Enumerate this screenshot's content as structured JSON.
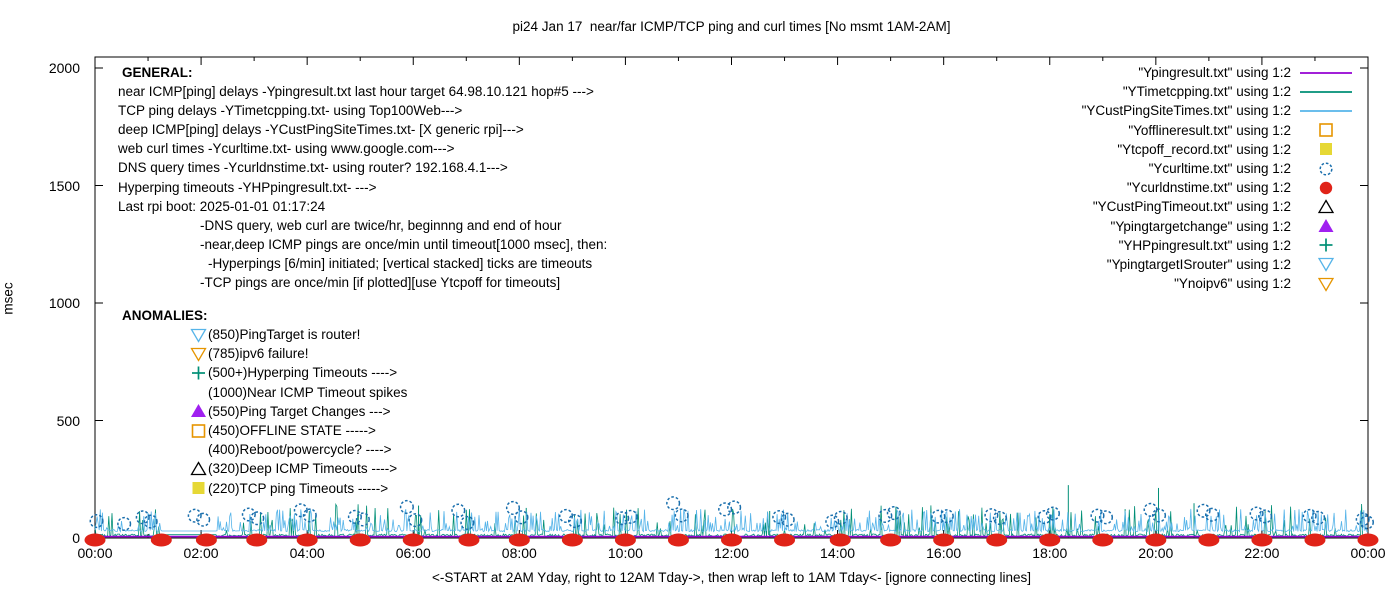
{
  "title": "pi24 Jan 17  near/far ICMP/TCP ping and curl times [No msmt 1AM-2AM]",
  "axes": {
    "ylabel": "msec",
    "xlabel": "<-START at 2AM Yday, right to 12AM Tday->, then wrap left to 1AM Tday<- [ignore connecting lines]",
    "y_ticks": [
      {
        "v": 0,
        "label": "0"
      },
      {
        "v": 500,
        "label": "500"
      },
      {
        "v": 1000,
        "label": "1000"
      },
      {
        "v": 1500,
        "label": "1500"
      },
      {
        "v": 2000,
        "label": "2000"
      }
    ],
    "x_ticks": [
      {
        "h": 0,
        "label": "00:00"
      },
      {
        "h": 2,
        "label": "02:00"
      },
      {
        "h": 4,
        "label": "04:00"
      },
      {
        "h": 6,
        "label": "06:00"
      },
      {
        "h": 8,
        "label": "08:00"
      },
      {
        "h": 10,
        "label": "10:00"
      },
      {
        "h": 12,
        "label": "12:00"
      },
      {
        "h": 14,
        "label": "14:00"
      },
      {
        "h": 16,
        "label": "16:00"
      },
      {
        "h": 18,
        "label": "18:00"
      },
      {
        "h": 20,
        "label": "20:00"
      },
      {
        "h": 22,
        "label": "22:00"
      },
      {
        "h": 24,
        "label": "00:00"
      }
    ]
  },
  "general": {
    "heading": "GENERAL:",
    "lines": [
      {
        "text": "near ICMP[ping] delays -Ypingresult.txt last hour target 64.98.10.121 hop#5 --->",
        "indent": 0
      },
      {
        "text": "TCP ping delays -YTimetcpping.txt- using Top100Web--->",
        "indent": 0
      },
      {
        "text": "deep ICMP[ping] delays -YCustPingSiteTimes.txt- [X generic rpi]--->",
        "indent": 0
      },
      {
        "text": "web curl times -Ycurltime.txt- using www.google.com--->",
        "indent": 0
      },
      {
        "text": "DNS query times -Ycurldnstime.txt- using router? 192.168.4.1--->",
        "indent": 0
      },
      {
        "text": "Hyperping timeouts -YHPpingresult.txt- --->",
        "indent": 0
      },
      {
        "text": "Last rpi boot: 2025-01-01 01:17:24",
        "indent": 0
      },
      {
        "text": "-DNS query, web curl are twice/hr, beginnng and end of hour",
        "indent": 1
      },
      {
        "text": "-near,deep ICMP pings are once/min until timeout[1000 msec], then:",
        "indent": 1
      },
      {
        "text": "-Hyperpings [6/min] initiated; [vertical stacked] ticks are timeouts",
        "indent": 2
      },
      {
        "text": "-TCP pings are once/min [if plotted][use Ytcpoff for timeouts]",
        "indent": 1
      }
    ]
  },
  "anomalies": {
    "heading": "ANOMALIES:",
    "items": [
      {
        "marker": "triangle-down-open",
        "color": "#56b4e9",
        "text": "(850)PingTarget is router!"
      },
      {
        "marker": "triangle-down-open",
        "color": "#e69500",
        "text": "(785)ipv6 failure!"
      },
      {
        "marker": "plus",
        "color": "#008f76",
        "text": "(500+)Hyperping Timeouts ---->"
      },
      {
        "marker": "none",
        "color": "",
        "text": "(1000)Near ICMP Timeout spikes"
      },
      {
        "marker": "triangle-up-filled",
        "color": "#a020f0",
        "text": "(550)Ping Target Changes --->"
      },
      {
        "marker": "square-open",
        "color": "#e69500",
        "text": "(450)OFFLINE STATE ----->"
      },
      {
        "marker": "none",
        "color": "",
        "text": "(400)Reboot/powercycle? ---->"
      },
      {
        "marker": "triangle-up-open",
        "color": "#000000",
        "text": "(320)Deep ICMP Timeouts ---->"
      },
      {
        "marker": "square-filled",
        "color": "#e6d835",
        "text": "(220)TCP ping Timeouts ----->"
      }
    ]
  },
  "legend": {
    "entries": [
      {
        "label": "\"Ypingresult.txt\" using 1:2",
        "marker": "line",
        "color": "#9400d3"
      },
      {
        "label": "\"YTimetcpping.txt\" using 1:2",
        "marker": "line",
        "color": "#008f76"
      },
      {
        "label": "\"YCustPingSiteTimes.txt\" using 1:2",
        "marker": "line",
        "color": "#56b4e9"
      },
      {
        "label": "\"Yofflineresult.txt\" using 1:2",
        "marker": "square-open",
        "color": "#e69500"
      },
      {
        "label": "\"Ytcpoff_record.txt\" using 1:2",
        "marker": "square-filled",
        "color": "#e6d835"
      },
      {
        "label": "\"Ycurltime.txt\" using 1:2",
        "marker": "circle-open",
        "color": "#1a6fad"
      },
      {
        "label": "\"Ycurldnstime.txt\" using 1:2",
        "marker": "circle-filled",
        "color": "#e02318"
      },
      {
        "label": "\"YCustPingTimeout.txt\" using 1:2",
        "marker": "triangle-up-open",
        "color": "#000000"
      },
      {
        "label": "\"Ypingtargetchange\" using 1:2",
        "marker": "triangle-up-filled",
        "color": "#a020f0"
      },
      {
        "label": "\"YHPpingresult.txt\" using 1:2",
        "marker": "plus",
        "color": "#008f76"
      },
      {
        "label": "\"YpingtargetISrouter\" using 1:2",
        "marker": "triangle-down-open",
        "color": "#56b4e9"
      },
      {
        "label": "\"Ynoipv6\" using 1:2",
        "marker": "triangle-down-open",
        "color": "#e69500"
      }
    ]
  },
  "chart_data": {
    "type": "line",
    "note": "24h time axis, all activity hugs 0-230 msec; 1AM-2AM gap bridged by flat connecting lines",
    "x_range_hours": [
      0,
      24
    ],
    "ylim": [
      0,
      2000
    ],
    "grid": false,
    "series": [
      {
        "name": "Ypingresult.txt",
        "kind": "flat-line",
        "color": "#9400d3",
        "value": 6
      },
      {
        "name": "YTimetcpping.txt",
        "kind": "noise-line",
        "color": "#008f76",
        "step": 0.02,
        "base": 6,
        "base_jitter": 11,
        "spike_prob": 0.1,
        "spike_min": 30,
        "spike_max": 145,
        "gap": [
          1.25,
          2.3
        ],
        "gap_value": 14,
        "seed": 777,
        "extra_spikes": [
          [
            6.1,
            138
          ],
          [
            8.13,
            128
          ],
          [
            12.72,
            115
          ],
          [
            18.35,
            225
          ],
          [
            20.05,
            213
          ],
          [
            20.72,
            148
          ]
        ]
      },
      {
        "name": "YCustPingSiteTimes.txt",
        "kind": "noise-line",
        "color": "#56b4e9",
        "step": 0.02,
        "base": 27,
        "base_jitter": 9,
        "spike_prob": 0.28,
        "spike_min": 40,
        "spike_max": 125,
        "gap": [
          1.25,
          2.3
        ],
        "gap_value": 30,
        "seed": 20240117,
        "extra_spikes": []
      },
      {
        "name": "Ycurltime.txt",
        "kind": "scatter",
        "marker": "circle-open",
        "color": "#1a6fad",
        "points": [
          [
            0.03,
            72
          ],
          [
            0.55,
            60
          ],
          [
            0.9,
            88
          ],
          [
            1.05,
            70
          ],
          [
            1.88,
            95
          ],
          [
            2.04,
            78
          ],
          [
            2.9,
            100
          ],
          [
            3.06,
            84
          ],
          [
            3.88,
            118
          ],
          [
            4.05,
            96
          ],
          [
            4.9,
            90
          ],
          [
            5.05,
            79
          ],
          [
            5.88,
            132
          ],
          [
            6.04,
            76
          ],
          [
            6.85,
            117
          ],
          [
            7.02,
            64
          ],
          [
            7.88,
            128
          ],
          [
            8.04,
            88
          ],
          [
            8.88,
            94
          ],
          [
            9.05,
            72
          ],
          [
            9.94,
            84
          ],
          [
            10.1,
            90
          ],
          [
            10.9,
            148
          ],
          [
            11.06,
            96
          ],
          [
            11.88,
            122
          ],
          [
            12.05,
            130
          ],
          [
            12.9,
            89
          ],
          [
            13.06,
            78
          ],
          [
            13.9,
            70
          ],
          [
            14.06,
            86
          ],
          [
            14.9,
            94
          ],
          [
            15.06,
            106
          ],
          [
            15.9,
            91
          ],
          [
            16.06,
            93
          ],
          [
            16.9,
            97
          ],
          [
            17.06,
            85
          ],
          [
            17.9,
            89
          ],
          [
            18.06,
            104
          ],
          [
            18.9,
            95
          ],
          [
            19.06,
            88
          ],
          [
            19.9,
            120
          ],
          [
            20.06,
            96
          ],
          [
            20.9,
            116
          ],
          [
            21.06,
            99
          ],
          [
            21.9,
            104
          ],
          [
            22.06,
            92
          ],
          [
            22.9,
            94
          ],
          [
            23.06,
            86
          ],
          [
            23.9,
            79
          ],
          [
            23.98,
            67
          ]
        ]
      },
      {
        "name": "Ycurldnstime.txt",
        "kind": "scatter",
        "marker": "dot-blob",
        "color": "#e02318",
        "points": [
          [
            0,
            0
          ],
          [
            1.25,
            0
          ],
          [
            2.1,
            0
          ],
          [
            3.05,
            0
          ],
          [
            4,
            0
          ],
          [
            5,
            0
          ],
          [
            6,
            0
          ],
          [
            7.05,
            0
          ],
          [
            8,
            0
          ],
          [
            9,
            0
          ],
          [
            10,
            0
          ],
          [
            11,
            0
          ],
          [
            12,
            0
          ],
          [
            13,
            0
          ],
          [
            14.05,
            0
          ],
          [
            15,
            0
          ],
          [
            16,
            0
          ],
          [
            17,
            0
          ],
          [
            18,
            0
          ],
          [
            19,
            0
          ],
          [
            20,
            0
          ],
          [
            21,
            0
          ],
          [
            22,
            0
          ],
          [
            23,
            0
          ],
          [
            24,
            0
          ]
        ]
      }
    ]
  }
}
